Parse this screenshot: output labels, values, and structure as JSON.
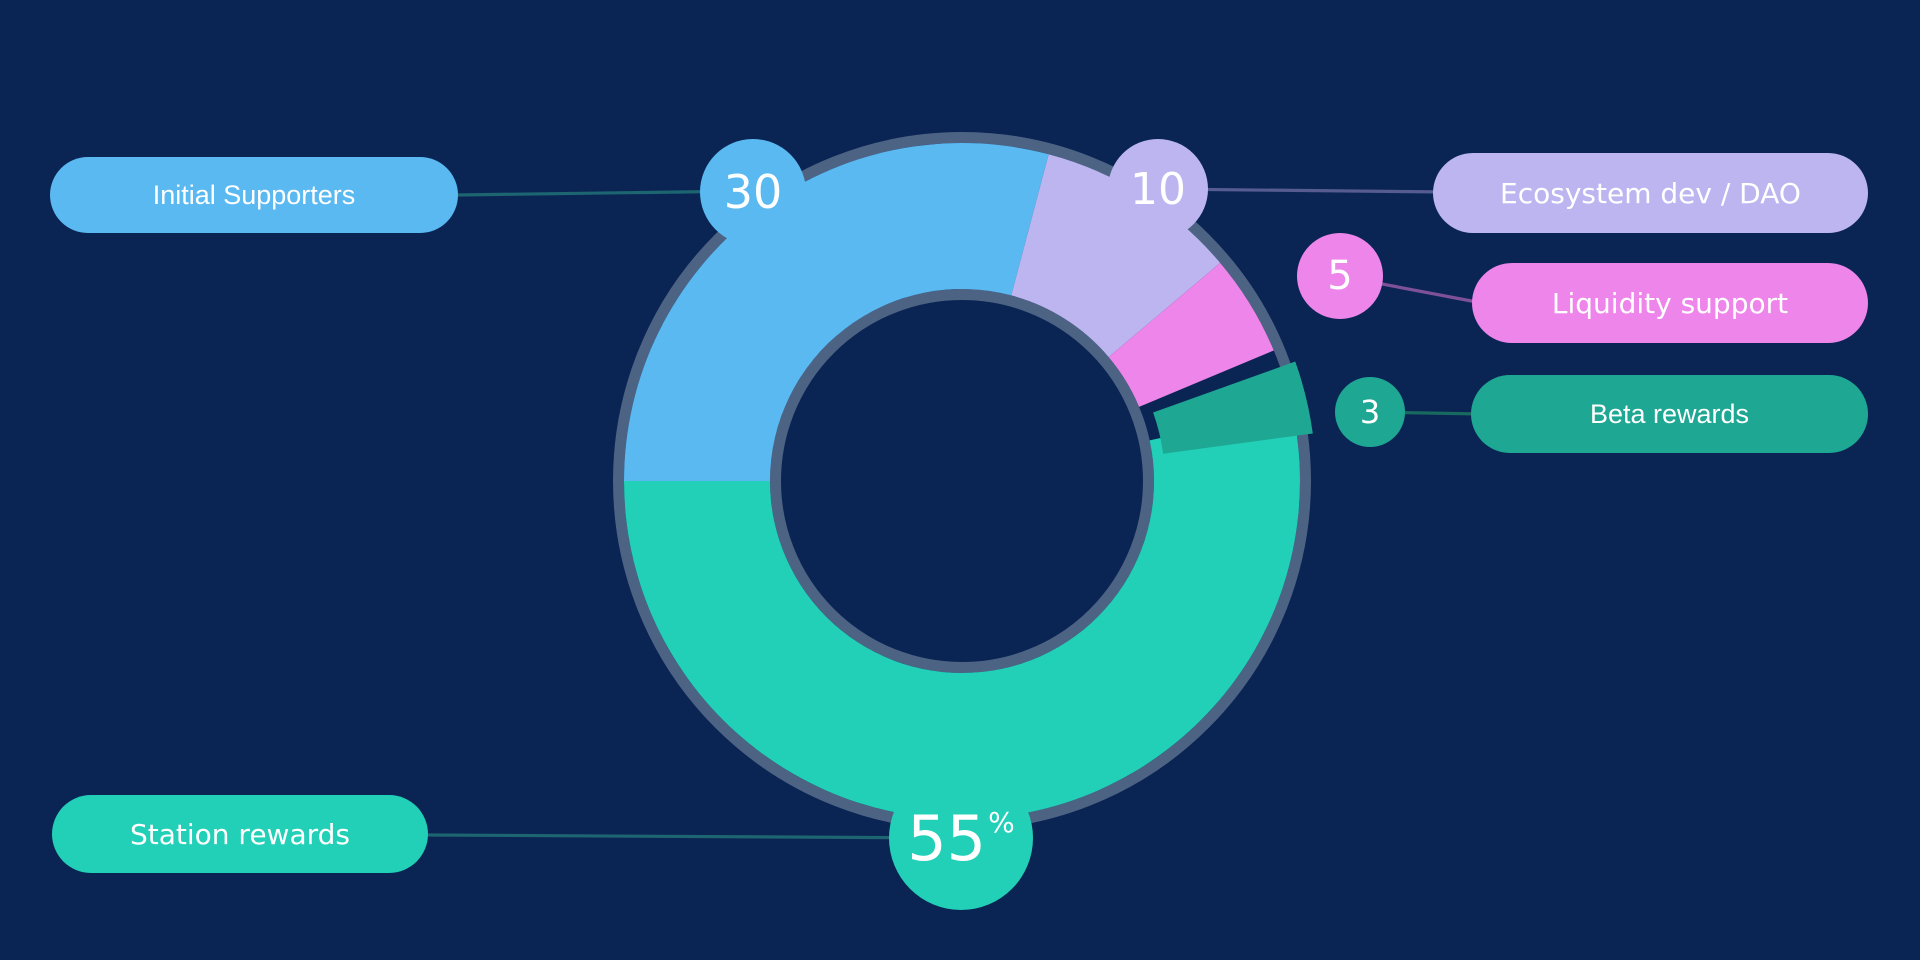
{
  "chart_data": {
    "type": "pie",
    "variant": "donut",
    "title": "",
    "legend_position": "callout-pills",
    "background_color": "#0a2554",
    "ring_outline_color": "#4d6384",
    "text_color": "#ffffff",
    "segments": [
      {
        "label": "Initial Supporters",
        "value": 30,
        "value_text": "30",
        "color": "#5bb9f2",
        "line_color": "#1d6571",
        "label_side": "left",
        "exploded": false
      },
      {
        "label": "Ecosystem dev / DAO",
        "value": 10,
        "value_text": "10",
        "color": "#bdb5f0",
        "line_color": "#565b90",
        "label_side": "right",
        "exploded": false
      },
      {
        "label": "Liquidity support",
        "value": 5,
        "value_text": "5",
        "color": "#ee85ea",
        "line_color": "#7e5198",
        "label_side": "right",
        "exploded": false
      },
      {
        "label": "Beta rewards",
        "value": 3,
        "value_text": "3",
        "color": "#1ea793",
        "line_color": "#18695f",
        "label_side": "right",
        "exploded": true
      },
      {
        "label": "Station rewards",
        "value": 55,
        "value_text": "55",
        "value_suffix": "%",
        "color": "#22d0b8",
        "line_color": "#1d6571",
        "label_side": "left",
        "exploded": false
      }
    ]
  }
}
